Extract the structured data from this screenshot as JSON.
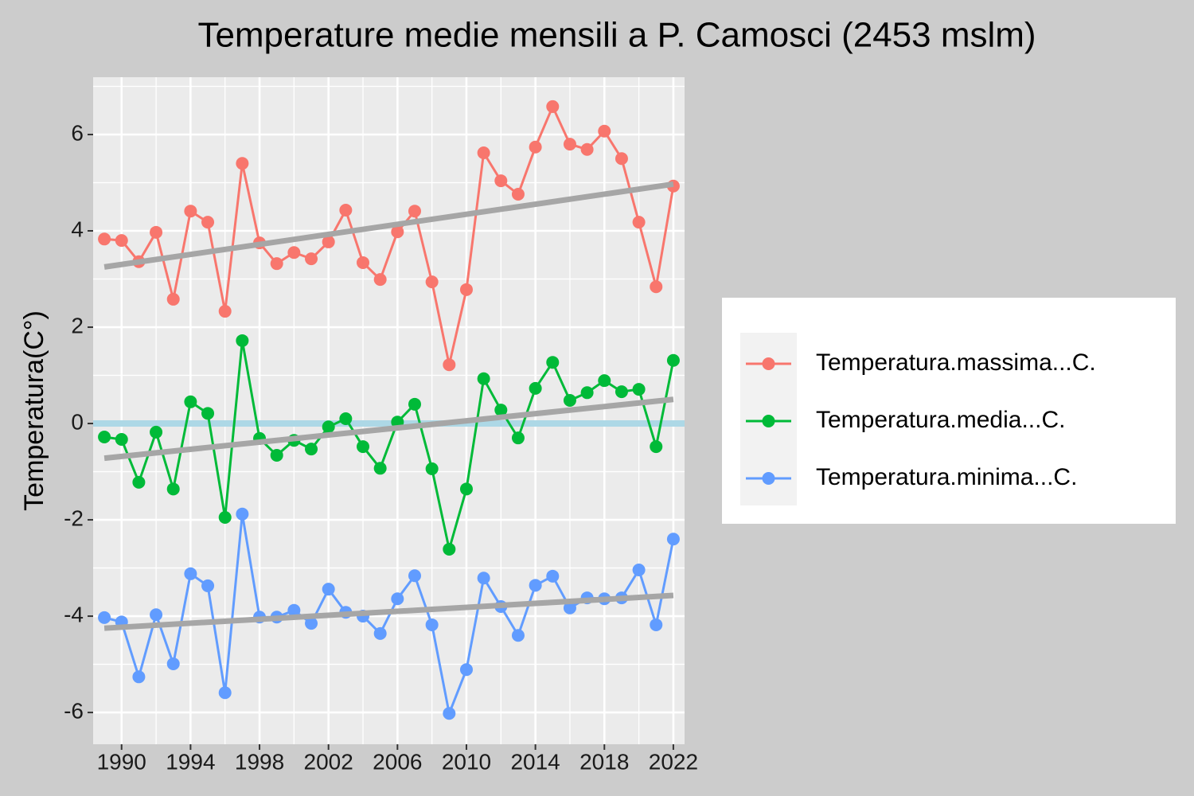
{
  "chart_data": {
    "type": "line",
    "title": "Temperature medie mensili a P. Camosci (2453 mslm)",
    "y_label": "Temperatura(C°)",
    "x": [
      1989,
      1990,
      1991,
      1992,
      1993,
      1994,
      1995,
      1996,
      1997,
      1998,
      1999,
      2000,
      2001,
      2002,
      2003,
      2004,
      2005,
      2006,
      2007,
      2008,
      2009,
      2010,
      2011,
      2012,
      2013,
      2014,
      2015,
      2016,
      2017,
      2018,
      2019,
      2020,
      2021,
      2022
    ],
    "series": [
      {
        "name": "Temperatura.massima...C.",
        "color": "#f8766d",
        "trend": [
          3.25,
          4.97
        ],
        "values": [
          3.83,
          3.8,
          3.36,
          3.97,
          2.58,
          4.41,
          4.18,
          2.33,
          5.4,
          3.75,
          3.32,
          3.55,
          3.42,
          3.77,
          4.43,
          3.34,
          2.99,
          3.98,
          4.41,
          2.94,
          1.22,
          2.78,
          5.62,
          5.04,
          4.76,
          5.74,
          6.58,
          5.8,
          5.69,
          6.07,
          5.5,
          4.18,
          2.84,
          4.93
        ]
      },
      {
        "name": "Temperatura.media...C.",
        "color": "#00ba38",
        "trend": [
          -0.72,
          0.5
        ],
        "values": [
          -0.28,
          -0.33,
          -1.22,
          -0.18,
          -1.36,
          0.45,
          0.21,
          -1.95,
          1.72,
          -0.31,
          -0.66,
          -0.35,
          -0.53,
          -0.07,
          0.1,
          -0.48,
          -0.93,
          0.03,
          0.4,
          -0.94,
          -2.61,
          -1.36,
          0.93,
          0.28,
          -0.3,
          0.73,
          1.27,
          0.48,
          0.64,
          0.89,
          0.66,
          0.71,
          -0.48,
          1.31
        ]
      },
      {
        "name": "Temperatura.minima...C.",
        "color": "#619cff",
        "trend": [
          -4.25,
          -3.57
        ],
        "values": [
          -4.03,
          -4.12,
          -5.26,
          -3.97,
          -4.99,
          -3.12,
          -3.37,
          -5.59,
          -1.88,
          -4.02,
          -4.02,
          -3.88,
          -4.15,
          -3.44,
          -3.92,
          -4.0,
          -4.36,
          -3.64,
          -3.16,
          -4.18,
          -6.02,
          -5.11,
          -3.21,
          -3.8,
          -4.4,
          -3.36,
          -3.17,
          -3.83,
          -3.62,
          -3.64,
          -3.62,
          -3.04,
          -4.18,
          -2.4
        ]
      }
    ],
    "trend_x": [
      1989,
      2022
    ],
    "trend_color": "#a6a6a6",
    "hline": 0,
    "hline_color": "#add8e6",
    "xlim": [
      1988.35,
      2022.65
    ],
    "xticks": [
      1990,
      1994,
      1998,
      2002,
      2006,
      2010,
      2014,
      2018,
      2022
    ],
    "xminorticks": [
      1988,
      1992,
      1996,
      2000,
      2004,
      2008,
      2012,
      2016,
      2020
    ],
    "ylim": [
      -6.66,
      7.19
    ],
    "yticks": [
      -6,
      -4,
      -2,
      0,
      2,
      4,
      6
    ],
    "yminorticks": [
      -5,
      -3,
      -1,
      1,
      3,
      5,
      7
    ],
    "grid": true,
    "legend": "right"
  }
}
